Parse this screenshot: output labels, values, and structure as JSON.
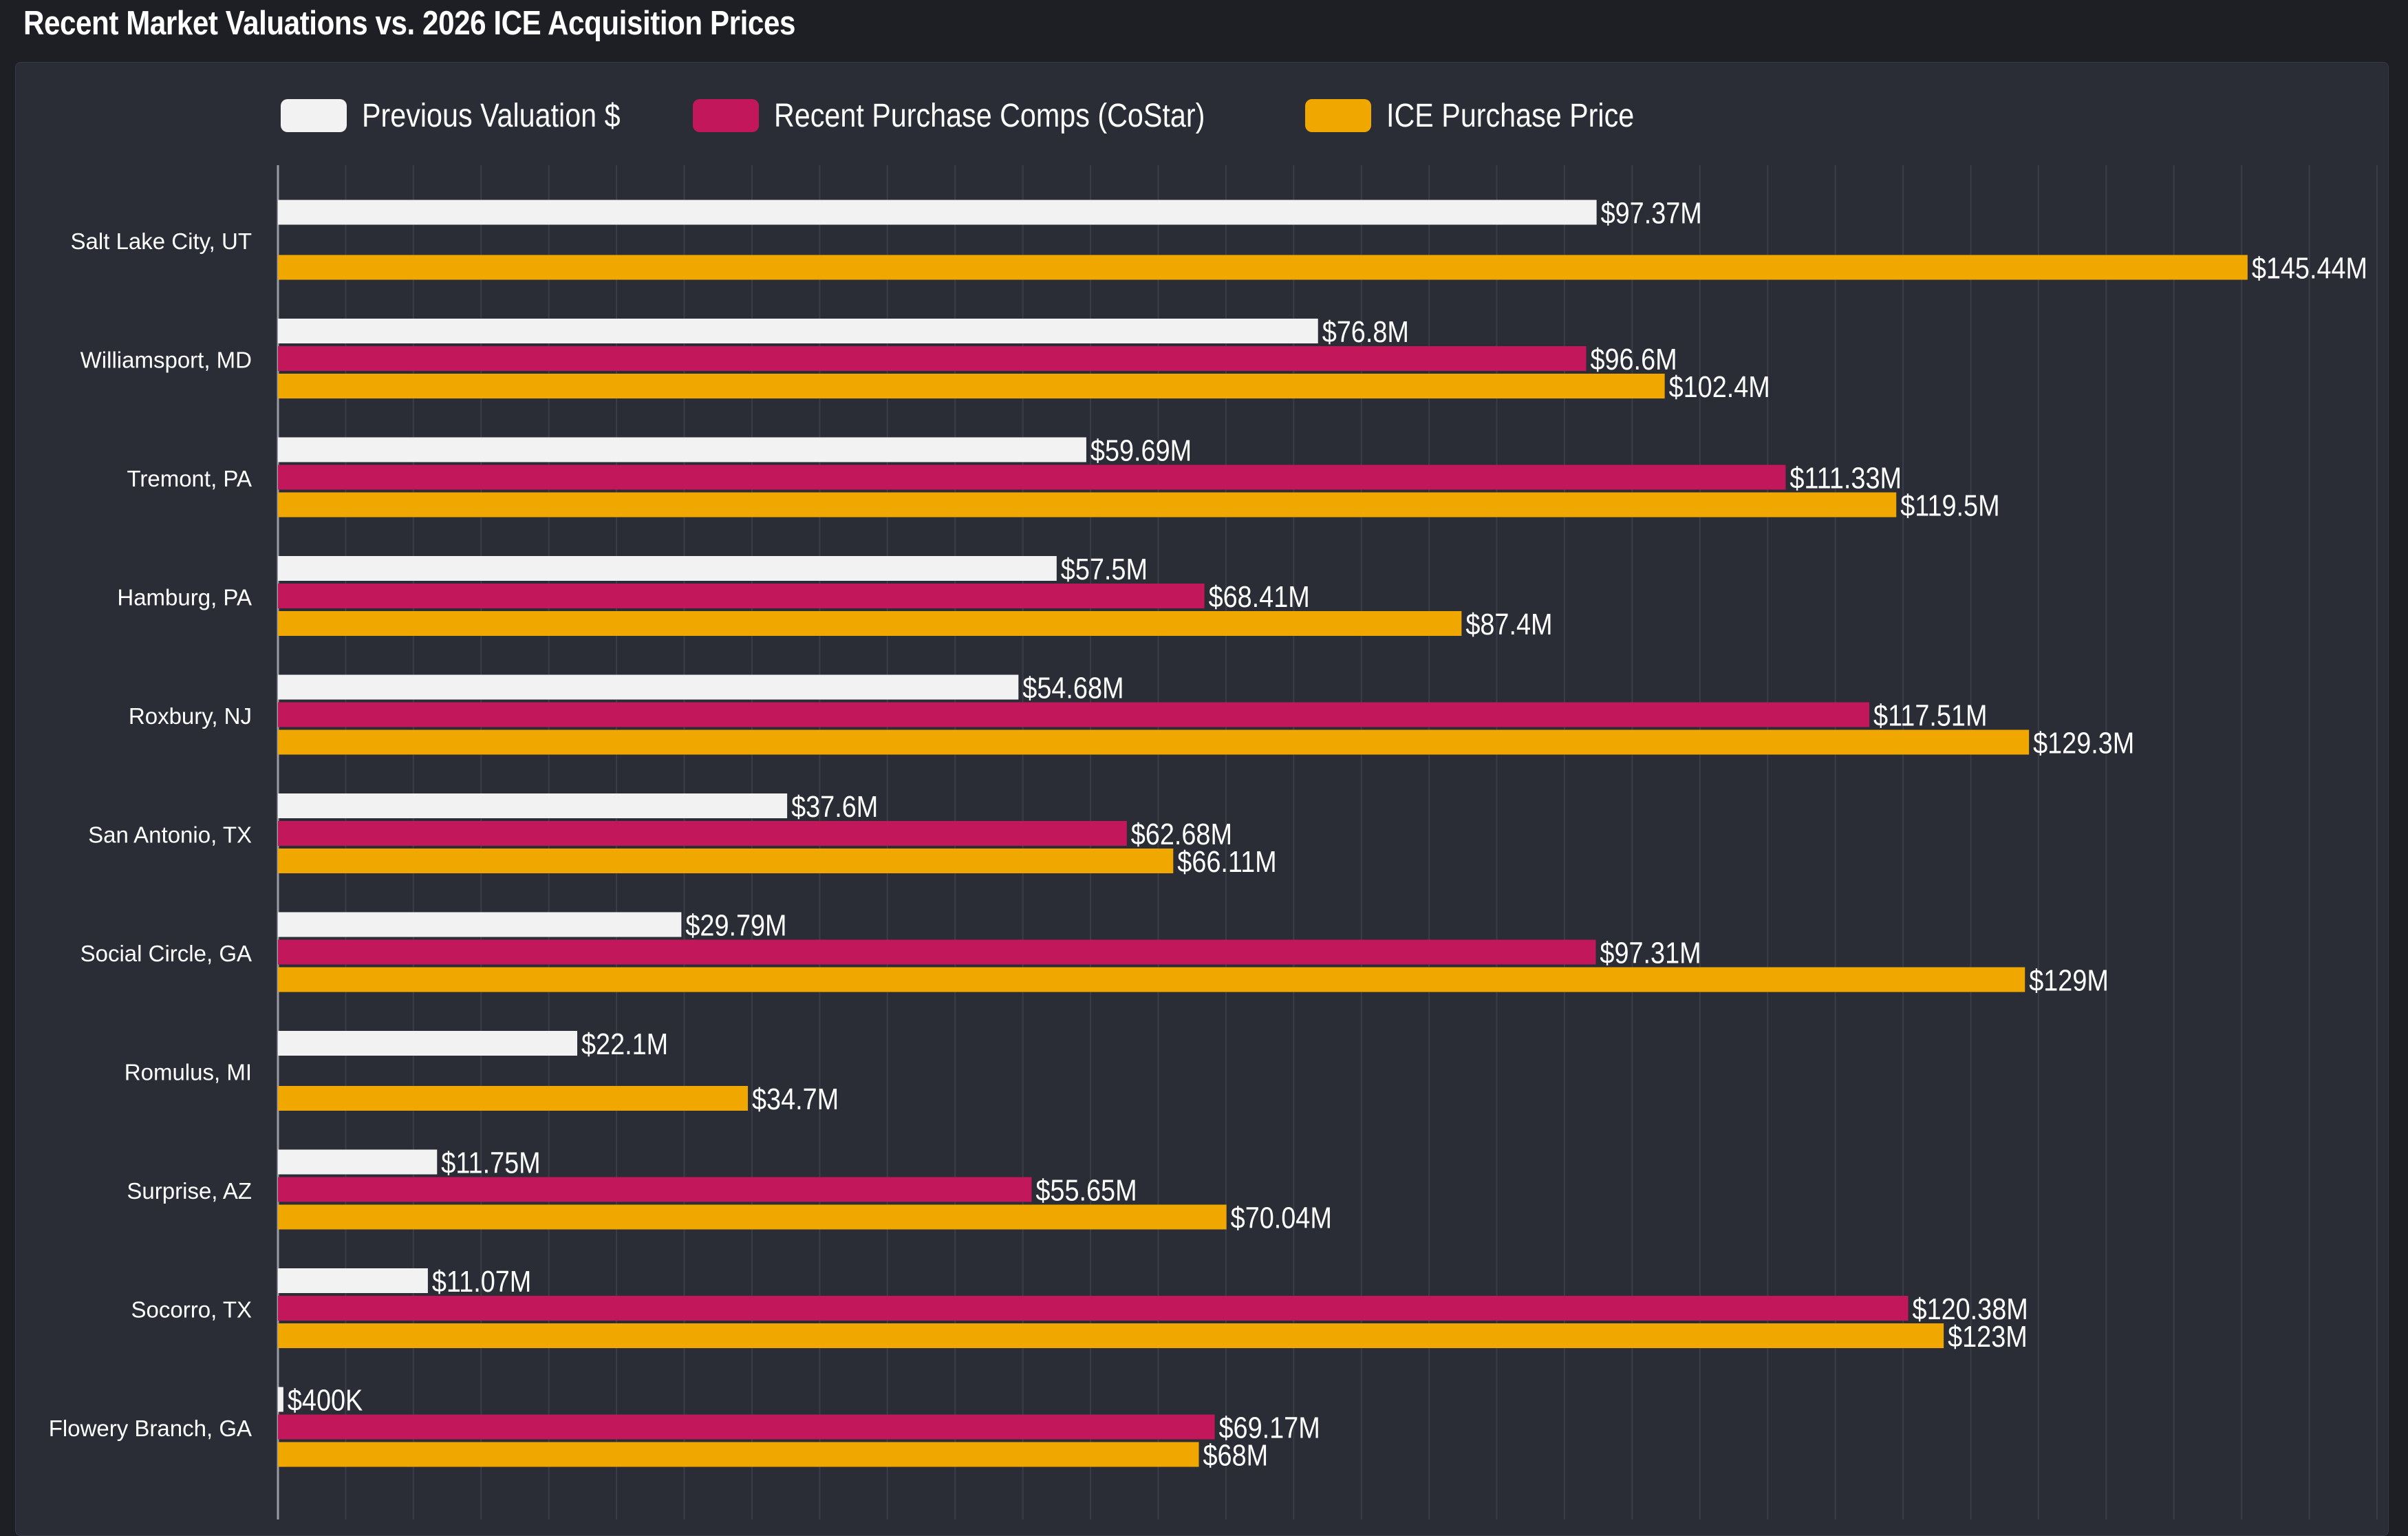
{
  "title": "Recent Market Valuations vs. 2026 ICE Acquisition Prices",
  "colors": {
    "previous": "#f2f2f2",
    "comps": "#c2185b",
    "ice": "#f0a800",
    "grid": "#3a3d47",
    "axis": "#9a9ca4",
    "text": "#ffffff"
  },
  "chart_data": {
    "type": "bar",
    "orientation": "horizontal",
    "title": "Recent Market Valuations vs. 2026 ICE Acquisition Prices",
    "xlabel": "",
    "ylabel": "",
    "xlim": [
      0,
      155
    ],
    "value_unit": "$M",
    "grid": true,
    "legend_position": "top",
    "categories": [
      "Salt Lake City, UT",
      "Williamsport, MD",
      "Tremont, PA",
      "Hamburg, PA",
      "Roxbury, NJ",
      "San Antonio, TX",
      "Social Circle, GA",
      "Romulus, MI",
      "Surprise, AZ",
      "Socorro, TX",
      "Flowery Branch, GA"
    ],
    "series": [
      {
        "key": "previous",
        "name": "Previous Valuation $",
        "values": [
          97.37,
          76.8,
          59.69,
          57.5,
          54.68,
          37.6,
          29.79,
          22.1,
          11.75,
          11.07,
          0.4
        ],
        "labels": [
          "$97.37M",
          "$76.8M",
          "$59.69M",
          "$57.5M",
          "$54.68M",
          "$37.6M",
          "$29.79M",
          "$22.1M",
          "$11.75M",
          "$11.07M",
          "$400K"
        ]
      },
      {
        "key": "comps",
        "name": "Recent Purchase Comps (CoStar)",
        "values": [
          null,
          96.6,
          111.33,
          68.41,
          117.51,
          62.68,
          97.31,
          null,
          55.65,
          120.38,
          69.17
        ],
        "labels": [
          null,
          "$96.6M",
          "$111.33M",
          "$68.41M",
          "$117.51M",
          "$62.68M",
          "$97.31M",
          null,
          "$55.65M",
          "$120.38M",
          "$69.17M"
        ]
      },
      {
        "key": "ice",
        "name": "ICE Purchase Price",
        "values": [
          145.44,
          102.4,
          119.5,
          87.4,
          129.3,
          66.11,
          129.0,
          34.7,
          70.04,
          123.0,
          68.0
        ],
        "labels": [
          "$145.44M",
          "$102.4M",
          "$119.5M",
          "$87.4M",
          "$129.3M",
          "$66.11M",
          "$129M",
          "$34.7M",
          "$70.04M",
          "$123M",
          "$68M"
        ]
      }
    ]
  }
}
